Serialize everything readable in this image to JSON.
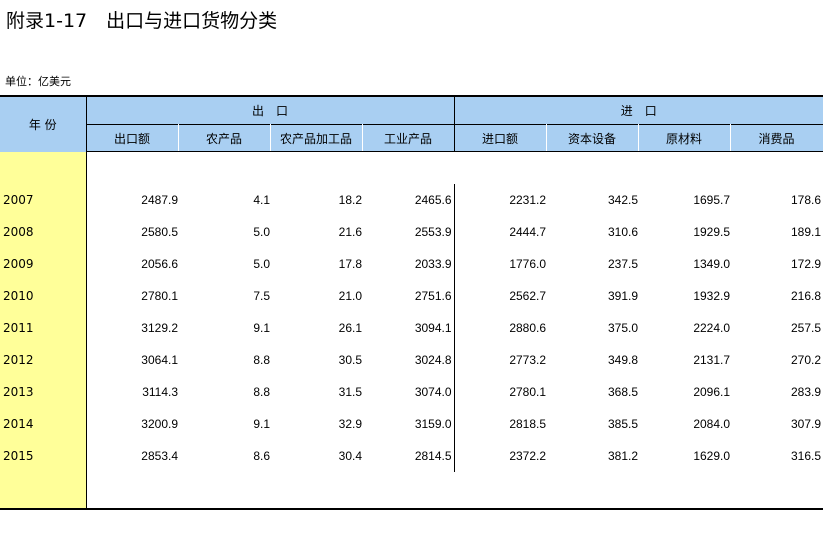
{
  "title": "附录1-17　出口与进口货物分类",
  "unit": "单位：亿美元",
  "header": {
    "year": "年 份",
    "export_group": "出　口",
    "import_group": "进　口",
    "export_cols": [
      "出口额",
      "农产品",
      "农产品加工品",
      "工业产品"
    ],
    "import_cols": [
      "进口额",
      "资本设备",
      "原材料",
      "消费品"
    ]
  },
  "rows": [
    {
      "year": "2007",
      "values": [
        "2487.9",
        "4.1",
        "18.2",
        "2465.6",
        "2231.2",
        "342.5",
        "1695.7",
        "178.6"
      ]
    },
    {
      "year": "2008",
      "values": [
        "2580.5",
        "5.0",
        "21.6",
        "2553.9",
        "2444.7",
        "310.6",
        "1929.5",
        "189.1"
      ]
    },
    {
      "year": "2009",
      "values": [
        "2056.6",
        "5.0",
        "17.8",
        "2033.9",
        "1776.0",
        "237.5",
        "1349.0",
        "172.9"
      ]
    },
    {
      "year": "2010",
      "values": [
        "2780.1",
        "7.5",
        "21.0",
        "2751.6",
        "2562.7",
        "391.9",
        "1932.9",
        "216.8"
      ]
    },
    {
      "year": "2011",
      "values": [
        "3129.2",
        "9.1",
        "26.1",
        "3094.1",
        "2880.6",
        "375.0",
        "2224.0",
        "257.5"
      ]
    },
    {
      "year": "2012",
      "values": [
        "3064.1",
        "8.8",
        "30.5",
        "3024.8",
        "2773.2",
        "349.8",
        "2131.7",
        "270.2"
      ]
    },
    {
      "year": "2013",
      "values": [
        "3114.3",
        "8.8",
        "31.5",
        "3074.0",
        "2780.1",
        "368.5",
        "2096.1",
        "283.9"
      ]
    },
    {
      "year": "2014",
      "values": [
        "3200.9",
        "9.1",
        "32.9",
        "3159.0",
        "2818.5",
        "385.5",
        "2084.0",
        "307.9"
      ]
    },
    {
      "year": "2015",
      "values": [
        "2853.4",
        "8.6",
        "30.4",
        "2814.5",
        "2372.2",
        "381.2",
        "1629.0",
        "316.5"
      ]
    }
  ],
  "colors": {
    "header_bg": "#a9cff2",
    "year_bg": "#ffff99"
  }
}
